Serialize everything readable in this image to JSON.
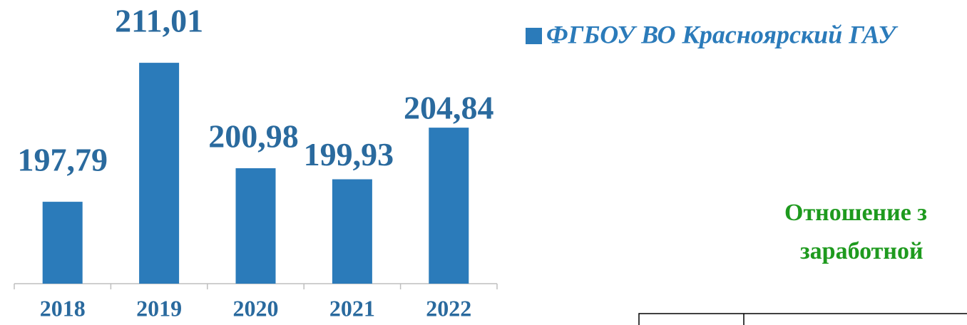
{
  "chart_data": {
    "type": "bar",
    "categories": [
      "2018",
      "2019",
      "2020",
      "2021",
      "2022"
    ],
    "series": [
      {
        "name": "ФГБОУ ВО Красноярский ГАУ",
        "color": "#2b7bba",
        "values": [
          197.79,
          211.01,
          200.98,
          199.93,
          204.84
        ],
        "value_labels": [
          "197,79",
          "211,01",
          "200,98",
          "199,93",
          "204,84"
        ]
      }
    ],
    "ylim": [
      190,
      214
    ],
    "legend": "top-right"
  },
  "caption": {
    "lines": [
      "Отношение з",
      "заработной"
    ]
  }
}
